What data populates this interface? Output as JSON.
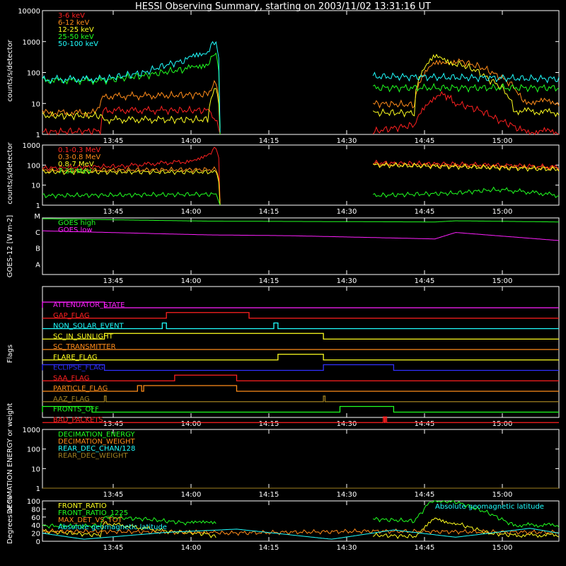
{
  "title": "HESSI Observing Summary, starting on 2003/11/02 13:31:16 UT",
  "colors": {
    "red": "#ff2020",
    "orange": "#ff8c1a",
    "yellow": "#ffff20",
    "green": "#20ff20",
    "cyan": "#20ffff",
    "magenta": "#ff20ff",
    "blue": "#3030ff",
    "olive": "#a08020"
  },
  "chart_data": [
    {
      "type": "line",
      "name": "energy-bands",
      "ylabel": "counts/s/detector",
      "yscale": "log",
      "ylim": [
        1,
        10000
      ],
      "yticks": [
        "1",
        "10",
        "100",
        "1000",
        "10000"
      ],
      "xticks": [
        "13:45",
        "14:00",
        "14:15",
        "14:30",
        "14:45",
        "15:00"
      ],
      "series": [
        {
          "name": "3-6 keV",
          "color": "red",
          "points": [
            [
              0,
              1.2
            ],
            [
              14,
              1.3
            ],
            [
              15,
              6
            ],
            [
              30,
              6
            ],
            [
              40,
              6
            ],
            [
              43,
              1
            ]
          ],
          "points2": [
            [
              80,
              1.2
            ],
            [
              90,
              2
            ],
            [
              97,
              20
            ],
            [
              100,
              10
            ],
            [
              110,
              3
            ],
            [
              116,
              1.3
            ],
            [
              125,
              1.2
            ]
          ]
        },
        {
          "name": "6-12 keV",
          "color": "orange",
          "points": [
            [
              0,
              5
            ],
            [
              13,
              5
            ],
            [
              15,
              17
            ],
            [
              30,
              18
            ],
            [
              40,
              20
            ],
            [
              42,
              45
            ],
            [
              43,
              1
            ]
          ],
          "points2": [
            [
              80,
              10
            ],
            [
              90,
              9
            ],
            [
              95,
              180
            ],
            [
              100,
              250
            ],
            [
              110,
              80
            ],
            [
              116,
              12
            ],
            [
              125,
              11
            ]
          ]
        },
        {
          "name": "12-25 keV",
          "color": "yellow",
          "points": [
            [
              0,
              4
            ],
            [
              14,
              4
            ],
            [
              15,
              3
            ],
            [
              30,
              3
            ],
            [
              40,
              3
            ],
            [
              42,
              30
            ],
            [
              43,
              1
            ]
          ],
          "points2": [
            [
              80,
              5
            ],
            [
              90,
              5
            ],
            [
              95,
              300
            ],
            [
              100,
              200
            ],
            [
              108,
              60
            ],
            [
              114,
              6
            ],
            [
              125,
              5
            ]
          ]
        },
        {
          "name": "25-50 keV",
          "color": "green",
          "points": [
            [
              0,
              55
            ],
            [
              15,
              55
            ],
            [
              25,
              80
            ],
            [
              35,
              130
            ],
            [
              40,
              200
            ],
            [
              42,
              400
            ],
            [
              43,
              1
            ]
          ],
          "points2": [
            [
              80,
              32
            ],
            [
              125,
              32
            ]
          ]
        },
        {
          "name": "50-100 keV",
          "color": "cyan",
          "points": [
            [
              0,
              60
            ],
            [
              15,
              62
            ],
            [
              25,
              100
            ],
            [
              35,
              250
            ],
            [
              40,
              500
            ],
            [
              42,
              1000
            ],
            [
              43,
              1
            ]
          ],
          "points2": [
            [
              80,
              75
            ],
            [
              125,
              62
            ]
          ]
        }
      ]
    },
    {
      "type": "line",
      "name": "high-energy-bands",
      "ylabel": "counts/s/detector",
      "yscale": "log",
      "ylim": [
        1,
        1000
      ],
      "yticks": [
        "1",
        "10",
        "100",
        "1000"
      ],
      "xticks": [
        "13:45",
        "14:00",
        "14:15",
        "14:30",
        "14:45",
        "15:00"
      ],
      "series": [
        {
          "name": "0.1-0.3 MeV",
          "color": "red",
          "points": [
            [
              0,
              70
            ],
            [
              20,
              90
            ],
            [
              35,
              150
            ],
            [
              40,
              300
            ],
            [
              42,
              700
            ],
            [
              43,
              1
            ]
          ],
          "points2": [
            [
              80,
              130
            ],
            [
              100,
              110
            ],
            [
              125,
              80
            ]
          ]
        },
        {
          "name": "0.3-0.8 MeV",
          "color": "orange",
          "points": [
            [
              0,
              55
            ],
            [
              42,
              60
            ],
            [
              43,
              1
            ]
          ],
          "points2": [
            [
              80,
              110
            ],
            [
              125,
              70
            ]
          ]
        },
        {
          "name": "0.8-7 MeV",
          "color": "yellow",
          "points": [
            [
              0,
              45
            ],
            [
              42,
              45
            ],
            [
              43,
              1
            ]
          ],
          "points2": [
            [
              80,
              100
            ],
            [
              125,
              60
            ]
          ]
        },
        {
          "name": "7-20 MeV",
          "color": "green",
          "points": [
            [
              0,
              3
            ],
            [
              42,
              3.5
            ],
            [
              43,
              1
            ]
          ],
          "points2": [
            [
              80,
              3
            ],
            [
              100,
              4
            ],
            [
              110,
              6
            ],
            [
              125,
              3
            ]
          ]
        }
      ]
    },
    {
      "type": "line",
      "name": "goes",
      "ylabel": "GOES-12 [W m-2]",
      "yticks": [
        "A",
        "B",
        "C",
        "M"
      ],
      "xticks": [
        "13:45",
        "14:00",
        "14:15",
        "14:30",
        "14:45",
        "15:00"
      ],
      "series": [
        {
          "name": "GOES high",
          "color": "green",
          "points": [
            [
              0,
              3.95
            ],
            [
              40,
              3.8
            ],
            [
              95,
              3.75
            ],
            [
              100,
              3.82
            ],
            [
              125,
              3.75
            ]
          ]
        },
        {
          "name": "GOES low",
          "color": "magenta",
          "points": [
            [
              0,
              3.2
            ],
            [
              40,
              2.95
            ],
            [
              60,
              2.9
            ],
            [
              95,
              2.7
            ],
            [
              100,
              3.1
            ],
            [
              110,
              2.9
            ],
            [
              125,
              2.6
            ]
          ]
        }
      ]
    },
    {
      "type": "line",
      "name": "flags",
      "ylabel": "Flags",
      "xticks": [
        "13:45",
        "14:00",
        "14:15",
        "14:30",
        "14:45",
        "15:00"
      ],
      "flags": [
        {
          "name": "ATTENUATOR_STATE",
          "color": "magenta",
          "segments": [
            [
              0,
              15
            ]
          ]
        },
        {
          "name": "GAP_FLAG",
          "color": "red",
          "segments": [
            [
              30,
              50
            ]
          ]
        },
        {
          "name": "NON_SOLAR_EVENT",
          "color": "cyan",
          "segments": [
            [
              29,
              30
            ],
            [
              56,
              57
            ]
          ]
        },
        {
          "name": "SC_IN_SUNLIGHT",
          "color": "yellow",
          "segments": [
            [
              15,
              68
            ]
          ]
        },
        {
          "name": "SC_TRANSMITTER",
          "color": "orange",
          "segments": []
        },
        {
          "name": "FLARE_FLAG",
          "color": "yellow",
          "segments": [
            [
              57,
              68
            ]
          ]
        },
        {
          "name": "ECLIPSE_FLAG",
          "color": "blue",
          "segments": [
            [
              0,
              15
            ],
            [
              68,
              85
            ]
          ]
        },
        {
          "name": "SAA_FLAG",
          "color": "red",
          "segments": [
            [
              32,
              47
            ]
          ]
        },
        {
          "name": "PARTICLE_FLAG",
          "color": "orange",
          "segments": [
            [
              23,
              24
            ],
            [
              24.5,
              47
            ]
          ]
        },
        {
          "name": "AAZ_FLAG",
          "color": "olive",
          "segments": [
            [
              15,
              15.4
            ],
            [
              68,
              68.4
            ]
          ]
        },
        {
          "name": "FRONTS_OFF",
          "color": "green",
          "segments": [
            [
              0,
              12
            ],
            [
              72,
              85
            ]
          ]
        },
        {
          "name": "BAD_PACKETS",
          "color": "red",
          "segments": [
            [
              82.5,
              82.8
            ],
            [
              83,
              83.3
            ]
          ]
        }
      ]
    },
    {
      "type": "line",
      "name": "decimation",
      "ylabel": "DECIMATION ENERGY or weight",
      "yscale": "log",
      "ylim": [
        1,
        1000
      ],
      "yticks": [
        "1",
        "10",
        "100",
        "1000"
      ],
      "xticks": [
        "13:45",
        "14:00",
        "14:15",
        "14:30",
        "14:45",
        "15:00"
      ],
      "series": [
        {
          "name": "DECIMATION_ENERGY",
          "color": "green",
          "points": [
            [
              0,
              1
            ],
            [
              125,
              1
            ]
          ]
        },
        {
          "name": "DECIMATION_WEIGHT",
          "color": "orange",
          "points": [
            [
              0,
              1
            ],
            [
              125,
              1
            ]
          ]
        },
        {
          "name": "REAR_DEC_CHAN/128",
          "color": "cyan",
          "points": [
            [
              0,
              1
            ],
            [
              125,
              1
            ]
          ]
        },
        {
          "name": "REAR_DEC_WEIGHT",
          "color": "olive",
          "points": [
            [
              0,
              1
            ],
            [
              125,
              1
            ]
          ]
        }
      ]
    },
    {
      "type": "line",
      "name": "ratios",
      "ylabel": "Degrees or %",
      "ylim": [
        0,
        100
      ],
      "yticks": [
        "0",
        "20",
        "40",
        "60",
        "80",
        "100"
      ],
      "xticks": [
        "13:45",
        "14:00",
        "14:15",
        "14:30",
        "14:45",
        "15:00"
      ],
      "annotation": "Absolute geomagnetic latitude",
      "series": [
        {
          "name": "FRONT_RATIO",
          "color": "yellow",
          "points": [
            [
              0,
              25
            ],
            [
              14,
              15
            ],
            [
              15,
              45
            ],
            [
              30,
              25
            ],
            [
              40,
              18
            ],
            [
              42,
              10
            ]
          ],
          "points2": [
            [
              80,
              15
            ],
            [
              90,
              12
            ],
            [
              95,
              55
            ],
            [
              100,
              45
            ],
            [
              108,
              20
            ],
            [
              114,
              15
            ],
            [
              125,
              15
            ]
          ]
        },
        {
          "name": "FRONT_RATIO_1225",
          "color": "green",
          "points": [
            [
              0,
              38
            ],
            [
              14,
              38
            ],
            [
              15,
              60
            ],
            [
              25,
              55
            ],
            [
              35,
              45
            ],
            [
              42,
              45
            ]
          ],
          "points2": [
            [
              80,
              55
            ],
            [
              90,
              50
            ],
            [
              94,
              100
            ],
            [
              100,
              98
            ],
            [
              108,
              70
            ],
            [
              114,
              40
            ],
            [
              125,
              40
            ]
          ]
        },
        {
          "name": "MAX_DET_VS_TOT",
          "color": "orange",
          "points": [
            [
              0,
              25
            ],
            [
              42,
              22
            ],
            [
              43,
              20
            ],
            [
              80,
              25
            ],
            [
              125,
              22
            ]
          ]
        },
        {
          "name": "Absolute geomagnetic latitude",
          "color": "cyan",
          "points": [
            [
              0,
              20
            ],
            [
              10,
              5
            ],
            [
              30,
              22
            ],
            [
              47,
              30
            ],
            [
              70,
              5
            ],
            [
              85,
              28
            ],
            [
              100,
              10
            ],
            [
              118,
              32
            ],
            [
              125,
              20
            ]
          ]
        }
      ]
    }
  ]
}
